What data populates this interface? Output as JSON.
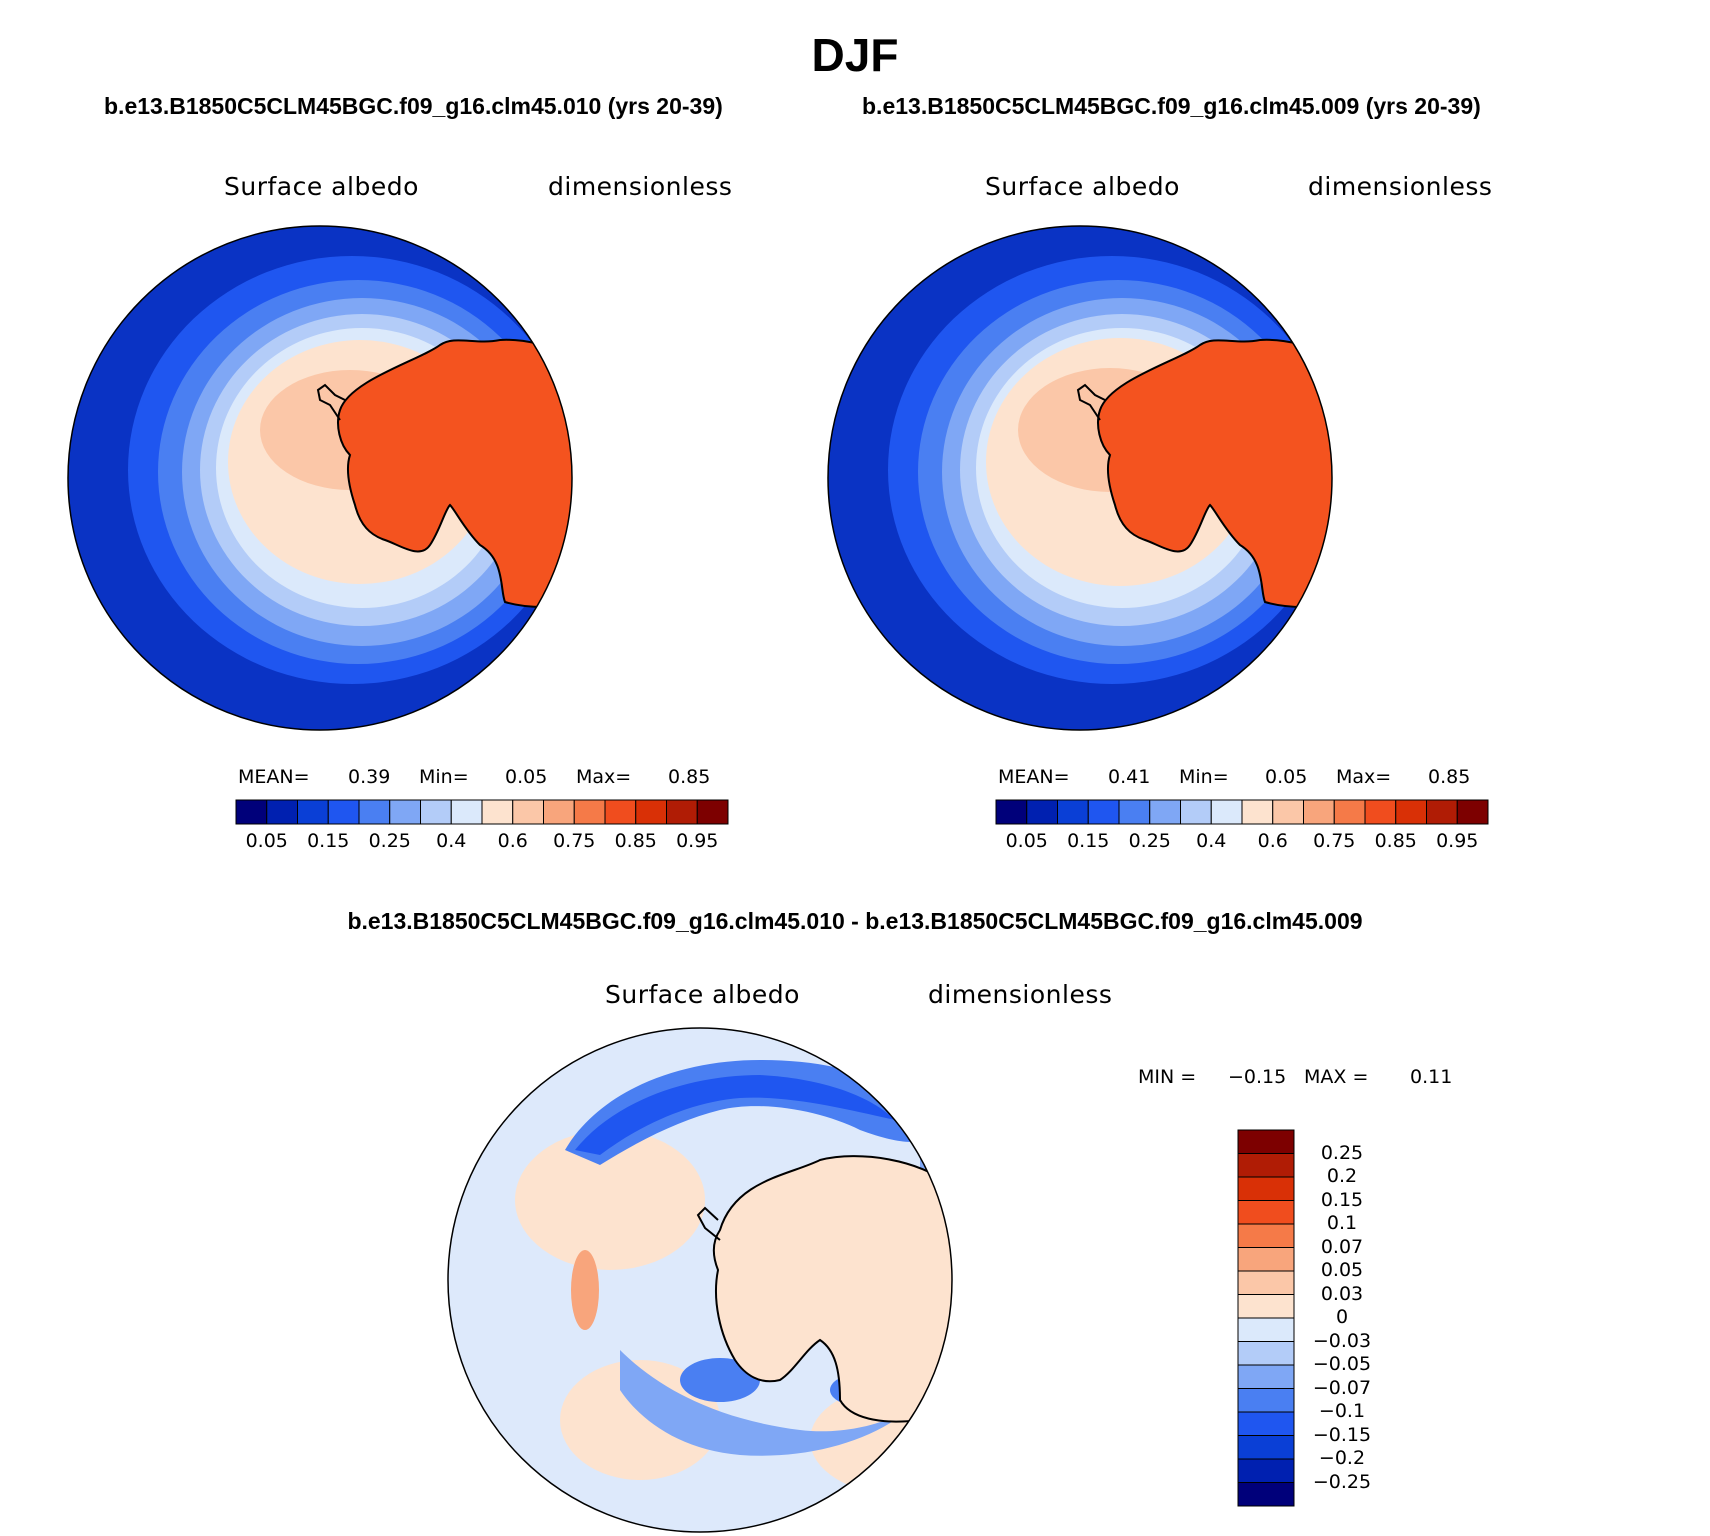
{
  "figure": {
    "title": "DJF",
    "left_subtitle": "b.e13.B1850C5CLM45BGC.f09_g16.clm45.010 (yrs 20-39)",
    "right_subtitle": "b.e13.B1850C5CLM45BGC.f09_g16.clm45.009 (yrs 20-39)",
    "diff_title": "b.e13.B1850C5CLM45BGC.f09_g16.clm45.010 - b.e13.B1850C5CLM45BGC.f09_g16.clm45.009"
  },
  "chart_data": [
    {
      "type": "heatmap",
      "projection": "south-polar-stereographic",
      "variable": "Surface albedo",
      "units": "dimensionless",
      "stats": {
        "mean_label": "MEAN=",
        "mean": "0.39",
        "min_label": "Min=",
        "min": "0.05",
        "max_label": "Max=",
        "max": "0.85"
      },
      "colorbar": {
        "orientation": "horizontal",
        "colors": [
          "#00007a",
          "#0020b0",
          "#0a3fd6",
          "#1f56f0",
          "#4a7ff2",
          "#7fa7f5",
          "#b3ccf8",
          "#dbe9fb",
          "#fde3cf",
          "#fbc7a8",
          "#f8a57c",
          "#f57a48",
          "#f04d1e",
          "#d93006",
          "#b01c05",
          "#7d0000"
        ],
        "tick_labels": [
          "0.05",
          "0.15",
          "0.25",
          "0.4",
          "0.6",
          "0.75",
          "0.85",
          "0.95"
        ]
      }
    },
    {
      "type": "heatmap",
      "projection": "south-polar-stereographic",
      "variable": "Surface albedo",
      "units": "dimensionless",
      "stats": {
        "mean_label": "MEAN=",
        "mean": "0.41",
        "min_label": "Min=",
        "min": "0.05",
        "max_label": "Max=",
        "max": "0.85"
      },
      "colorbar": {
        "orientation": "horizontal",
        "colors": [
          "#00007a",
          "#0020b0",
          "#0a3fd6",
          "#1f56f0",
          "#4a7ff2",
          "#7fa7f5",
          "#b3ccf8",
          "#dbe9fb",
          "#fde3cf",
          "#fbc7a8",
          "#f8a57c",
          "#f57a48",
          "#f04d1e",
          "#d93006",
          "#b01c05",
          "#7d0000"
        ],
        "tick_labels": [
          "0.05",
          "0.15",
          "0.25",
          "0.4",
          "0.6",
          "0.75",
          "0.85",
          "0.95"
        ]
      }
    },
    {
      "type": "heatmap",
      "projection": "south-polar-stereographic",
      "variable": "Surface albedo",
      "units": "dimensionless",
      "stats": {
        "min_label": "MIN =",
        "min": "−0.15",
        "max_label": "MAX =",
        "max": "0.11"
      },
      "colorbar": {
        "orientation": "vertical",
        "colors_top_to_bottom": [
          "#7d0000",
          "#b01c05",
          "#d93006",
          "#f04d1e",
          "#f57a48",
          "#f8a57c",
          "#fbc7a8",
          "#fde3cf",
          "#dbe9fb",
          "#b3ccf8",
          "#7fa7f5",
          "#4a7ff2",
          "#1f56f0",
          "#0a3fd6",
          "#0020b0",
          "#00007a"
        ],
        "tick_labels": [
          "0.25",
          "0.2",
          "0.15",
          "0.1",
          "0.07",
          "0.05",
          "0.03",
          "0",
          "−0.03",
          "−0.05",
          "−0.07",
          "−0.1",
          "−0.15",
          "−0.2",
          "−0.25"
        ]
      }
    }
  ],
  "colors": {
    "ice_sheet": "#f4531f",
    "ocean_far": "#0a33c4",
    "diff_neutral": "#dde9fb",
    "diff_warm": "#fde3cf",
    "coastline": "#000000"
  }
}
